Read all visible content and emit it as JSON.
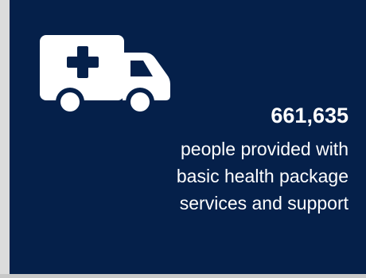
{
  "stat_card": {
    "icon": "ambulance-icon",
    "value": "661,635",
    "description_lines": [
      "people provided with",
      "basic health package",
      "services and support"
    ],
    "colors": {
      "background": "#05204a",
      "foreground": "#ffffff"
    }
  }
}
